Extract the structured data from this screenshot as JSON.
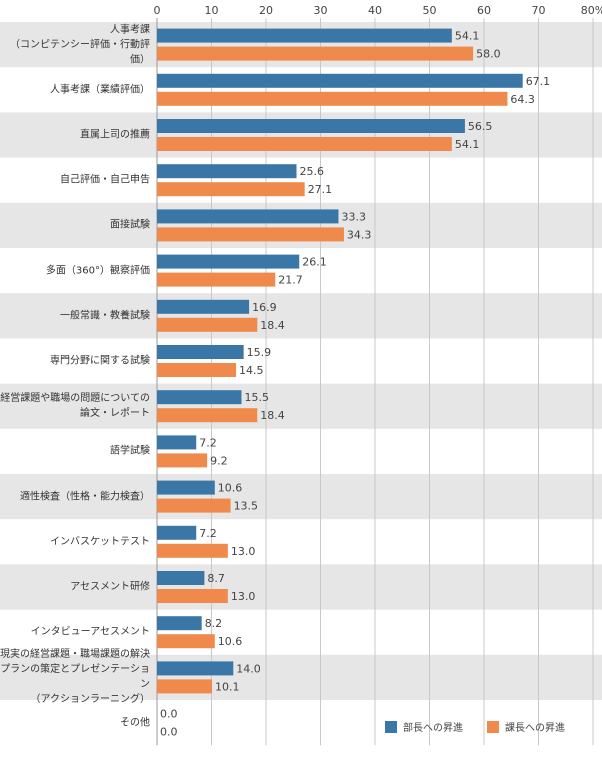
{
  "chart_data": {
    "type": "bar",
    "orientation": "horizontal",
    "categories": [
      "人事考課\n（コンピテンシー評価・行動評価）",
      "人事考課（業績評価）",
      "直属上司の推薦",
      "自己評価・自己申告",
      "面接試験",
      "多面（360°）観察評価",
      "一般常識・教養試験",
      "専門分野に関する試験",
      "経営課題や職場の問題についての\n論文・レポート",
      "語学試験",
      "適性検査（性格・能力検査）",
      "インバスケットテスト",
      "アセスメント研修",
      "インタビューアセスメント",
      "現実の経営課題・職場課題の解決\nプランの策定とプレゼンテーション\n（アクションラーニング）",
      "その他"
    ],
    "series": [
      {
        "name": "部長への昇進",
        "color": "#3b77a6",
        "values": [
          54.1,
          67.1,
          56.5,
          25.6,
          33.3,
          26.1,
          16.9,
          15.9,
          15.5,
          7.2,
          10.6,
          7.2,
          8.7,
          8.2,
          14.0,
          0.0
        ],
        "value_labels": [
          "54.1",
          "67.1",
          "56.5",
          "25.6",
          "33.3",
          "26.1",
          "16.9",
          "15.9",
          "15.5",
          "7.2",
          "10.6",
          "7.2",
          "8.7",
          "8.2",
          "14.0",
          "0.0"
        ]
      },
      {
        "name": "課長への昇進",
        "color": "#ef8a4c",
        "values": [
          58.0,
          64.3,
          54.1,
          27.1,
          34.3,
          21.7,
          18.4,
          14.5,
          18.4,
          9.2,
          13.5,
          13.0,
          13.0,
          10.6,
          10.1,
          0.0
        ],
        "value_labels": [
          "58.0",
          "64.3",
          "54.1",
          "27.1",
          "34.3",
          "21.7",
          "18.4",
          "14.5",
          "18.4",
          "9.2",
          "13.5",
          "13.0",
          "13.0",
          "10.6",
          "10.1",
          "0.0"
        ]
      }
    ],
    "xlim": [
      0,
      80
    ],
    "xticks": [
      0,
      10,
      20,
      30,
      40,
      50,
      60,
      70,
      {
        "value": 80,
        "label": "80%"
      }
    ],
    "grid": true,
    "legend": "bottom-right"
  }
}
